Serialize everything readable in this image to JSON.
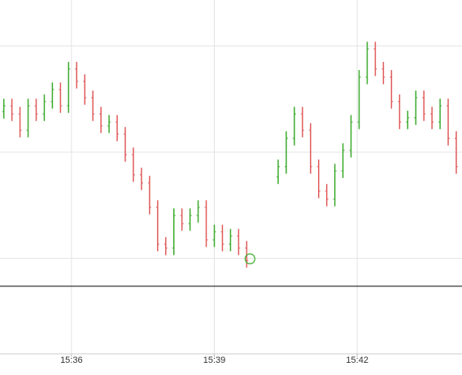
{
  "chart_data": {
    "type": "ohlc",
    "x": [
      34.58,
      34.75,
      34.92,
      35.09,
      35.26,
      35.43,
      35.6,
      35.77,
      35.94,
      36.11,
      36.28,
      36.45,
      36.62,
      36.79,
      36.96,
      37.13,
      37.3,
      37.47,
      37.64,
      37.81,
      37.98,
      38.15,
      38.32,
      38.49,
      38.66,
      38.83,
      39.0,
      39.17,
      39.34,
      39.51,
      39.68,
      40.34,
      40.51,
      40.68,
      40.85,
      41.02,
      41.19,
      41.36,
      41.53,
      41.7,
      41.87,
      42.04,
      42.21,
      42.38,
      42.55,
      42.72,
      42.89,
      43.06,
      43.23,
      43.4,
      43.57,
      43.74,
      43.91,
      44.08
    ],
    "open": [
      68.5,
      70.1,
      67.8,
      63.2,
      70.1,
      67.8,
      71.3,
      74.7,
      70.1,
      80.5,
      77.0,
      72.4,
      67.8,
      64.4,
      65.5,
      62.1,
      56.3,
      50.6,
      48.3,
      41.4,
      31.0,
      29.9,
      39.1,
      36.8,
      39.1,
      41.4,
      32.2,
      34.5,
      31.0,
      33.3,
      29.9,
      50.0,
      52.9,
      60.9,
      67.8,
      63.2,
      52.9,
      46.0,
      43.7,
      51.7,
      57.5,
      65.5,
      78.2,
      86.2,
      80.5,
      78.2,
      71.3,
      65.5,
      66.7,
      72.4,
      67.8,
      65.5,
      70.1,
      60.9
    ],
    "high": [
      72.1,
      72.1,
      69.8,
      72.1,
      72.1,
      73.3,
      76.7,
      76.7,
      82.5,
      82.5,
      79.0,
      74.4,
      69.8,
      67.5,
      67.5,
      64.1,
      58.3,
      52.6,
      50.3,
      43.4,
      33.0,
      41.1,
      41.1,
      41.1,
      43.4,
      43.4,
      36.5,
      36.5,
      35.3,
      35.3,
      31.9,
      54.9,
      62.9,
      69.8,
      69.8,
      65.2,
      54.9,
      48.0,
      53.7,
      59.5,
      67.5,
      80.2,
      88.2,
      88.2,
      82.5,
      80.2,
      73.3,
      68.7,
      74.4,
      74.4,
      69.8,
      72.1,
      72.1,
      62.9
    ],
    "low": [
      66.5,
      65.8,
      61.2,
      61.2,
      65.8,
      65.8,
      69.3,
      68.1,
      68.1,
      75.0,
      70.4,
      65.8,
      62.4,
      62.4,
      60.1,
      54.3,
      48.6,
      46.3,
      39.4,
      29.0,
      27.9,
      27.9,
      34.8,
      34.8,
      37.1,
      30.2,
      30.2,
      29.0,
      29.0,
      27.9,
      24.4,
      48.0,
      50.9,
      58.9,
      61.2,
      50.9,
      44.0,
      41.7,
      41.7,
      49.7,
      55.5,
      63.5,
      76.2,
      78.5,
      76.2,
      69.3,
      63.5,
      63.5,
      64.7,
      65.8,
      63.5,
      63.5,
      58.9,
      50.9
    ],
    "close": [
      70.1,
      67.8,
      63.2,
      70.1,
      67.8,
      71.3,
      74.7,
      70.1,
      80.5,
      77.0,
      72.4,
      67.8,
      64.4,
      65.5,
      62.1,
      56.3,
      50.6,
      48.3,
      41.4,
      31.0,
      29.9,
      39.1,
      36.8,
      39.1,
      41.4,
      32.2,
      34.5,
      31.0,
      33.3,
      29.9,
      26.4,
      52.9,
      60.9,
      67.8,
      63.2,
      52.9,
      46.0,
      43.7,
      51.7,
      57.5,
      65.5,
      78.2,
      86.2,
      80.5,
      78.2,
      71.3,
      65.5,
      66.7,
      72.4,
      67.8,
      65.5,
      70.1,
      60.9,
      52.9
    ],
    "up_color": "#3aaa2a",
    "down_color": "#e05a5a",
    "xlim": [
      34.5,
      44.2
    ],
    "xticks": [
      {
        "value": 36,
        "label": "15:36"
      },
      {
        "value": 39,
        "label": "15:39"
      },
      {
        "value": 42,
        "label": "15:42"
      }
    ],
    "ylim": [
      0,
      100
    ],
    "yticks": [
      27,
      57,
      87
    ],
    "grid": true,
    "reference_line": 19.1
  }
}
